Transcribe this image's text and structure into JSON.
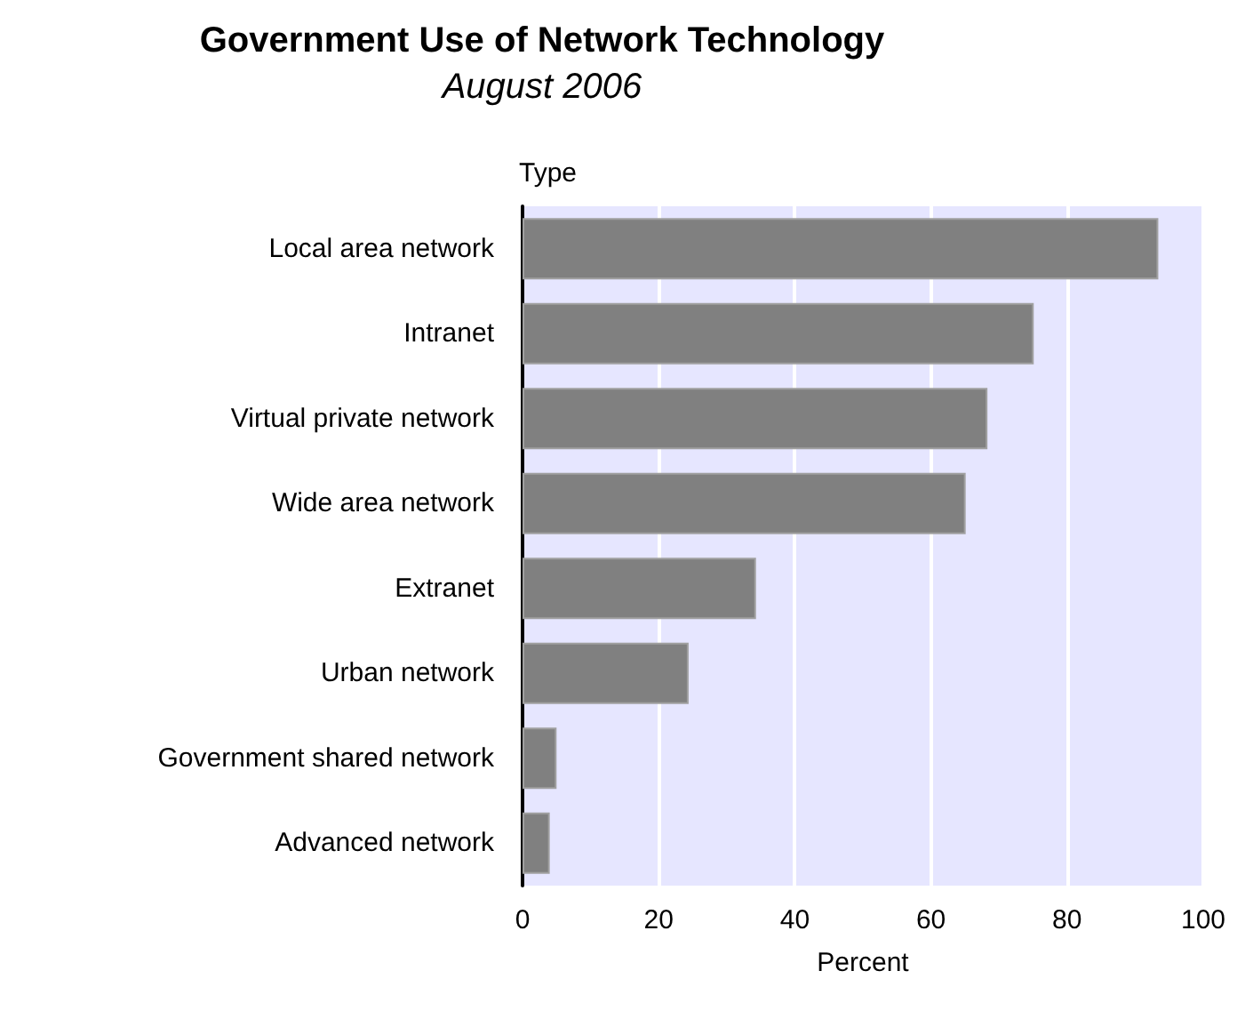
{
  "chart_data": {
    "type": "bar",
    "orientation": "horizontal",
    "title": "Government Use of Network Technology",
    "subtitle": "August 2006",
    "ylabel": "Type",
    "xlabel": "Percent",
    "categories": [
      "Local area network",
      "Intranet",
      "Virtual private network",
      "Wide area network",
      "Extranet",
      "Urban network",
      "Government shared network",
      "Advanced network"
    ],
    "values": [
      93.4,
      75.1,
      68.3,
      65.1,
      34.3,
      24.4,
      5.0,
      4.0
    ],
    "color": "#808080",
    "xlim": [
      0,
      100
    ],
    "xticks": [
      0,
      20,
      40,
      60,
      80,
      100
    ],
    "grid": "x"
  }
}
